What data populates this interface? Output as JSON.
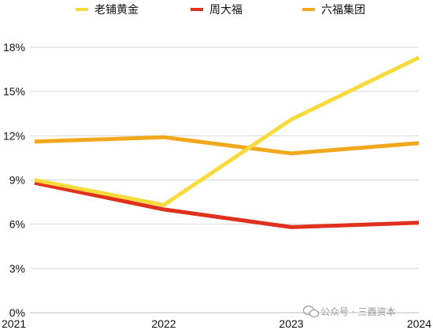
{
  "chart_data": {
    "type": "line",
    "x": [
      "2021",
      "2022",
      "2023",
      "2024"
    ],
    "y_ticks": [
      "0%",
      "3%",
      "6%",
      "9%",
      "12%",
      "15%",
      "18%"
    ],
    "ylim": [
      0,
      18
    ],
    "unit": "%",
    "grid": "horizontal",
    "legend_position": "top",
    "series": [
      {
        "name": "老铺黄金",
        "color": "#F7DB3C",
        "values": [
          9.0,
          7.3,
          13.1,
          17.3
        ]
      },
      {
        "name": "周大福",
        "color": "#E0301E",
        "values": [
          8.8,
          7.0,
          5.8,
          6.1
        ]
      },
      {
        "name": "六福集团",
        "color": "#F2A81D",
        "values": [
          11.6,
          11.9,
          10.8,
          11.5
        ]
      }
    ]
  },
  "watermark": {
    "text": "公众号 · 三酉资本"
  }
}
